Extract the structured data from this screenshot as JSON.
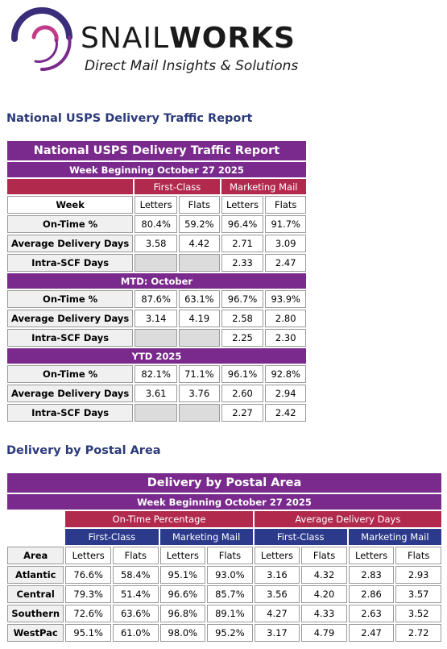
{
  "brand": {
    "name_thin": "SNAIL",
    "name_bold": "WORKS",
    "tagline": "Direct Mail Insights & Solutions"
  },
  "section1": {
    "heading": "National USPS Delivery Traffic Report"
  },
  "report": {
    "title": "National USPS Delivery Traffic Report",
    "week": "Week Beginning October 27 2025",
    "groups": [
      "First-Class",
      "Marketing Mail"
    ],
    "week_label": "Week",
    "cols": [
      "Letters",
      "Flats",
      "Letters",
      "Flats"
    ],
    "blocks": [
      {
        "label": null,
        "rows": [
          {
            "label": "On-Time %",
            "values": [
              "80.4%",
              "59.2%",
              "96.4%",
              "91.7%"
            ]
          },
          {
            "label": "Average Delivery Days",
            "values": [
              "3.58",
              "4.42",
              "2.71",
              "3.09"
            ]
          },
          {
            "label": "Intra-SCF Days",
            "values": [
              "",
              "",
              "2.33",
              "2.47"
            ]
          }
        ]
      },
      {
        "label": "MTD: October",
        "rows": [
          {
            "label": "On-Time %",
            "values": [
              "87.6%",
              "63.1%",
              "96.7%",
              "93.9%"
            ]
          },
          {
            "label": "Average Delivery Days",
            "values": [
              "3.14",
              "4.19",
              "2.58",
              "2.80"
            ]
          },
          {
            "label": "Intra-SCF Days",
            "values": [
              "",
              "",
              "2.25",
              "2.30"
            ]
          }
        ]
      },
      {
        "label": "YTD 2025",
        "rows": [
          {
            "label": "On-Time %",
            "values": [
              "82.1%",
              "71.1%",
              "96.1%",
              "92.8%"
            ]
          },
          {
            "label": "Average Delivery Days",
            "values": [
              "3.61",
              "3.76",
              "2.60",
              "2.94"
            ]
          },
          {
            "label": "Intra-SCF Days",
            "values": [
              "",
              "",
              "2.27",
              "2.42"
            ]
          }
        ]
      }
    ]
  },
  "section2": {
    "heading": "Delivery by Postal Area"
  },
  "area": {
    "title": "Delivery by Postal Area",
    "week": "Week Beginning October 27 2025",
    "metrics": [
      "On-Time Percentage",
      "Average Delivery Days"
    ],
    "groups": [
      "First-Class",
      "Marketing Mail",
      "First-Class",
      "Marketing Mail"
    ],
    "area_label": "Area",
    "cols": [
      "Letters",
      "Flats",
      "Letters",
      "Flats",
      "Letters",
      "Flats",
      "Letters",
      "Flats"
    ],
    "rows": [
      {
        "label": "Atlantic",
        "values": [
          "76.6%",
          "58.4%",
          "95.1%",
          "93.0%",
          "3.16",
          "4.32",
          "2.83",
          "2.93"
        ]
      },
      {
        "label": "Central",
        "values": [
          "79.3%",
          "51.4%",
          "96.6%",
          "85.7%",
          "3.56",
          "4.20",
          "2.86",
          "3.57"
        ]
      },
      {
        "label": "Southern",
        "values": [
          "72.6%",
          "63.6%",
          "96.8%",
          "89.1%",
          "4.27",
          "4.33",
          "2.63",
          "3.52"
        ]
      },
      {
        "label": "WestPac",
        "values": [
          "95.1%",
          "61.0%",
          "98.0%",
          "95.2%",
          "3.17",
          "4.79",
          "2.47",
          "2.72"
        ]
      }
    ]
  },
  "colors": {
    "purple": "#7a2a8c",
    "crimson": "#b2294e",
    "navy": "#2c3a8c",
    "heading": "#2b3a7a"
  }
}
